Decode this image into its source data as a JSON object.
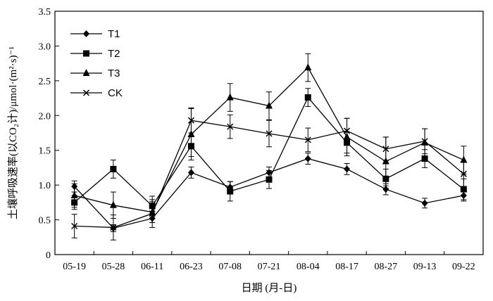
{
  "chart_data": {
    "type": "line",
    "title": "",
    "xlabel": "日期 (月-日)",
    "ylabel": "土壤呼吸速率(以CO₂计)/μmol·(m²·s)⁻¹",
    "ylim": [
      0,
      3.5
    ],
    "yticks": [
      "0",
      "0.5",
      "1.0",
      "1.5",
      "2.0",
      "2.5",
      "3.0",
      "3.5"
    ],
    "categories": [
      "05-19",
      "05-28",
      "06-11",
      "06-23",
      "07-08",
      "07-21",
      "08-04",
      "08-17",
      "08-27",
      "09-13",
      "09-22"
    ],
    "legend_position": "top-left",
    "grid": false,
    "series": [
      {
        "name": "T1",
        "marker": "diamond",
        "values": [
          0.98,
          0.38,
          0.52,
          1.18,
          0.97,
          1.18,
          1.38,
          1.23,
          0.94,
          0.74,
          0.85
        ],
        "errors": [
          0.08,
          0.05,
          0.06,
          0.08,
          0.08,
          0.08,
          0.08,
          0.08,
          0.08,
          0.07,
          0.08
        ]
      },
      {
        "name": "T2",
        "marker": "square",
        "values": [
          0.75,
          1.23,
          0.7,
          1.56,
          0.91,
          1.08,
          2.26,
          1.61,
          1.09,
          1.38,
          0.94
        ],
        "errors": [
          0.1,
          0.13,
          0.14,
          0.15,
          0.14,
          0.13,
          0.13,
          0.15,
          0.14,
          0.13,
          0.15
        ]
      },
      {
        "name": "T3",
        "marker": "triangle",
        "values": [
          0.85,
          0.71,
          0.61,
          1.73,
          2.26,
          2.14,
          2.69,
          1.69,
          1.34,
          1.61,
          1.36
        ],
        "errors": [
          0.17,
          0.19,
          0.15,
          0.37,
          0.2,
          0.2,
          0.2,
          0.27,
          0.35,
          0.2,
          0.2
        ]
      },
      {
        "name": "CK",
        "marker": "x",
        "values": [
          0.41,
          0.39,
          0.59,
          1.93,
          1.84,
          1.74,
          1.65,
          1.78,
          1.52,
          1.63,
          1.16
        ],
        "errors": [
          0.17,
          0.18,
          0.2,
          0.18,
          0.17,
          0.19,
          0.17,
          0.18,
          0.17,
          0.18,
          0.18
        ]
      }
    ]
  }
}
